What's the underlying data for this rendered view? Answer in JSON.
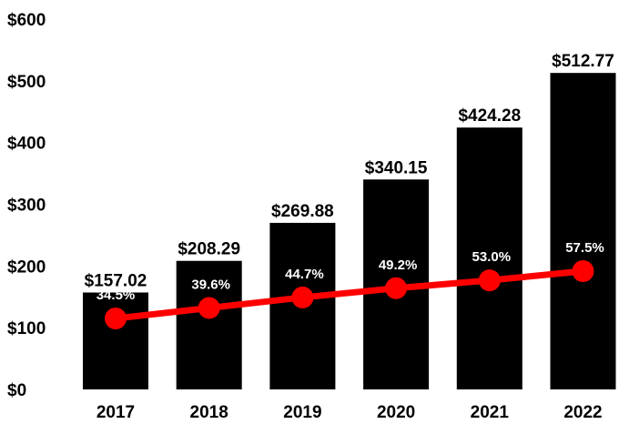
{
  "chart_data": {
    "type": "bar",
    "categories": [
      "2017",
      "2018",
      "2019",
      "2020",
      "2021",
      "2022"
    ],
    "series": [
      {
        "type": "bar",
        "values": [
          157.02,
          208.29,
          269.88,
          340.15,
          424.28,
          512.77
        ],
        "labels": [
          "$157.02",
          "$208.29",
          "$269.88",
          "$340.15",
          "$424.28",
          "$512.77"
        ],
        "color": "#000000"
      },
      {
        "type": "line",
        "values": [
          34.5,
          39.6,
          44.7,
          49.2,
          53.0,
          57.5
        ],
        "labels": [
          "34.5%",
          "39.6%",
          "44.7%",
          "49.2%",
          "53.0%",
          "57.5%"
        ],
        "color": "#ff0000"
      }
    ],
    "yaxis": {
      "ticks": [
        0,
        100,
        200,
        300,
        400,
        500,
        600
      ],
      "tick_labels": [
        "$0",
        "$100",
        "$200",
        "$300",
        "$400",
        "$500",
        "$600"
      ],
      "ylim": [
        0,
        600
      ]
    },
    "line_axis": {
      "ylim": [
        0,
        180
      ]
    },
    "title": "",
    "xlabel": "",
    "ylabel": "",
    "grid": false,
    "legend": "none"
  }
}
